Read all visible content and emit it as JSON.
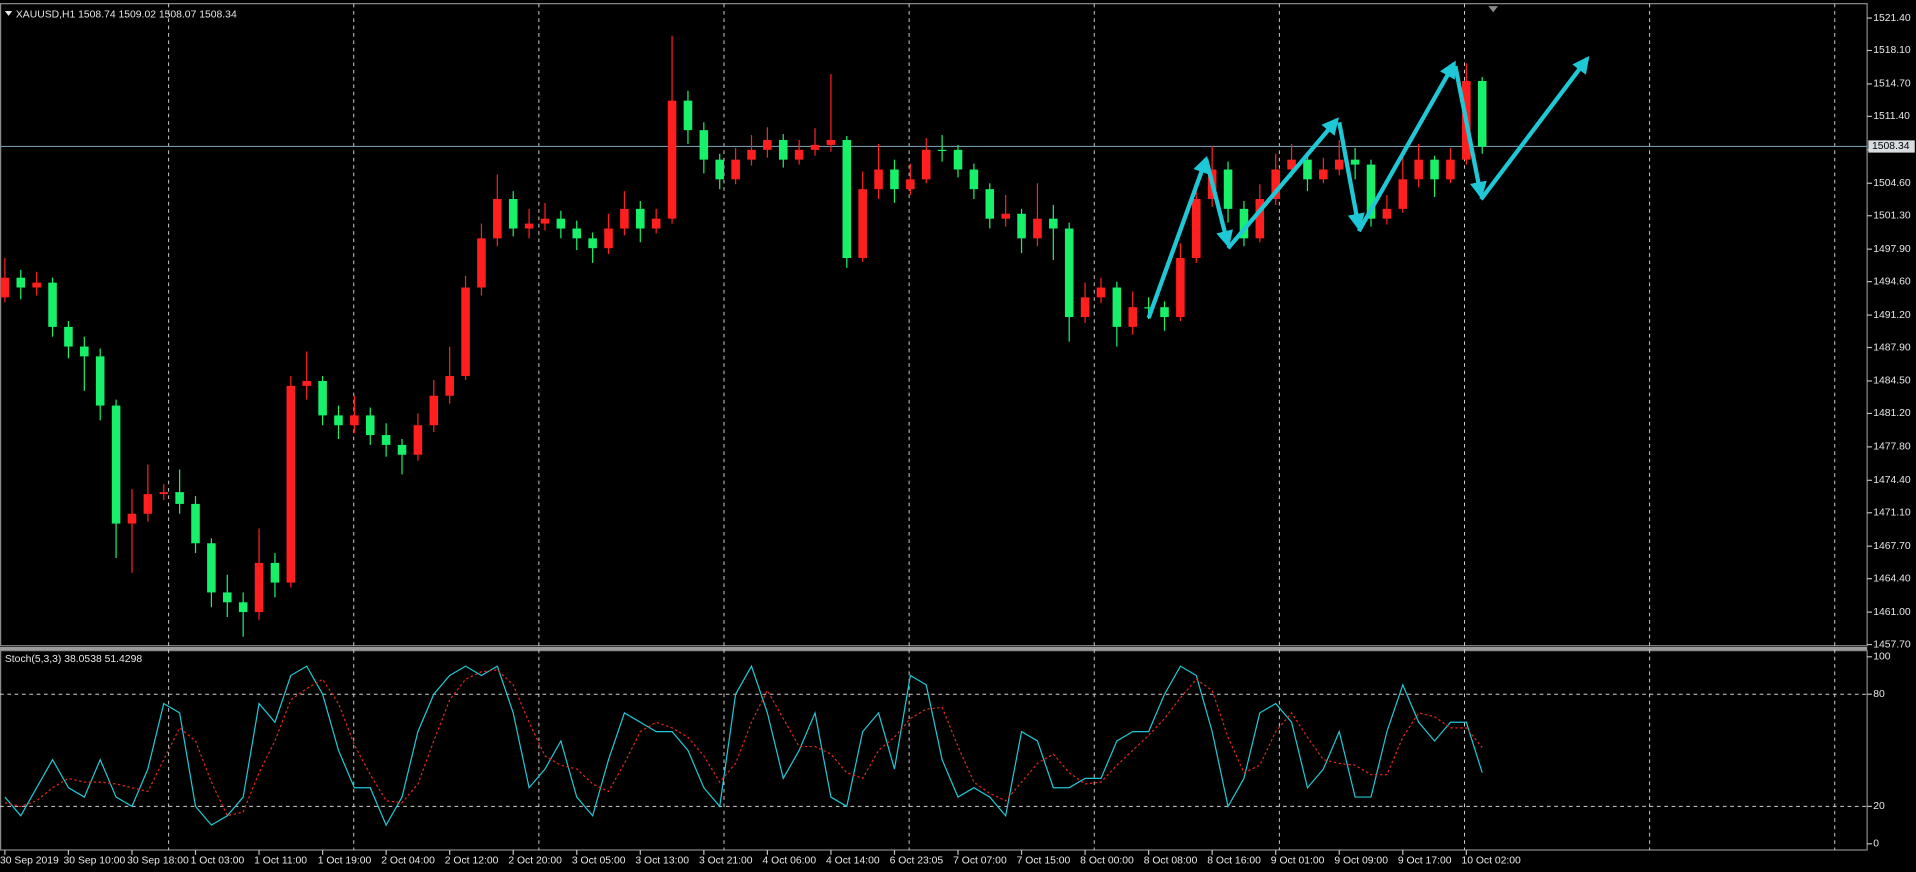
{
  "chart_data": [
    {
      "type": "candlestick",
      "title": "XAUUSD,H1  1508.74 1509.02 1508.07 1508.34",
      "up_color": "#ff1f1f",
      "down_color": "#19f06a",
      "grid": true,
      "ylim": [
        1457.58,
        1522.86
      ],
      "yticks": [
        {
          "value": 1521.4,
          "label": "1521.40"
        },
        {
          "value": 1518.1,
          "label": "1518.10"
        },
        {
          "value": 1514.7,
          "label": "1514.70"
        },
        {
          "value": 1511.4,
          "label": "1511.40"
        },
        {
          "value": 1508,
          "label": "1508.00"
        },
        {
          "value": 1504.6,
          "label": "1504.60"
        },
        {
          "value": 1501.3,
          "label": "1501.30"
        },
        {
          "value": 1497.9,
          "label": "1497.90"
        },
        {
          "value": 1494.6,
          "label": "1494.60"
        },
        {
          "value": 1491.2,
          "label": "1491.20"
        },
        {
          "value": 1487.9,
          "label": "1487.90"
        },
        {
          "value": 1484.5,
          "label": "1484.50"
        },
        {
          "value": 1481.2,
          "label": "1481.20"
        },
        {
          "value": 1477.8,
          "label": "1477.80"
        },
        {
          "value": 1474.4,
          "label": "1474.40"
        },
        {
          "value": 1471.1,
          "label": "1471.10"
        },
        {
          "value": 1467.7,
          "label": "1467.70"
        },
        {
          "value": 1464.4,
          "label": "1464.40"
        },
        {
          "value": 1461,
          "label": "1461.00"
        },
        {
          "value": 1457.7,
          "label": "1457.70"
        }
      ],
      "current_price": 1508.34,
      "categories": [
        "30 Sep 2019",
        null,
        null,
        null,
        "30 Sep 10:00",
        null,
        null,
        null,
        "30 Sep 18:00",
        null,
        null,
        null,
        "1 Oct 03:00",
        null,
        null,
        null,
        "1 Oct 11:00",
        null,
        null,
        null,
        "1 Oct 19:00",
        null,
        null,
        null,
        "2 Oct 04:00",
        null,
        null,
        null,
        "2 Oct 12:00",
        null,
        null,
        null,
        "2 Oct 20:00",
        null,
        null,
        null,
        "3 Oct 05:00",
        null,
        null,
        null,
        "3 Oct 13:00",
        null,
        null,
        null,
        "3 Oct 21:00",
        null,
        null,
        null,
        "4 Oct 06:00",
        null,
        null,
        null,
        "4 Oct 14:00",
        null,
        null,
        null,
        "6 Oct 23:05",
        null,
        null,
        null,
        "7 Oct 07:00",
        null,
        null,
        null,
        "7 Oct 15:00",
        null,
        null,
        null,
        "8 Oct 00:00",
        null,
        null,
        null,
        "8 Oct 08:00",
        null,
        null,
        null,
        "8 Oct 16:00",
        null,
        null,
        null,
        "9 Oct 01:00",
        null,
        null,
        null,
        "9 Oct 09:00",
        null,
        null,
        null,
        "9 Oct 17:00",
        null,
        null,
        null,
        "10 Oct 02:00",
        null
      ],
      "open": [
        1493,
        1495,
        1494,
        1494.5,
        1490,
        1488,
        1487,
        1482,
        1470,
        1471,
        1473,
        1473.2,
        1472,
        1468,
        1463,
        1462,
        1461,
        1466,
        1464,
        1484,
        1484.5,
        1481,
        1480,
        1481,
        1479,
        1478,
        1477,
        1480,
        1483,
        1485,
        1494,
        1499,
        1503,
        1500,
        1500.5,
        1501,
        1500,
        1499,
        1498,
        1500,
        1502,
        1500,
        1501,
        1513,
        1510,
        1507,
        1505,
        1507,
        1508,
        1509,
        1507,
        1508,
        1508.5,
        1509,
        1497,
        1504,
        1506,
        1504,
        1505,
        1508,
        1508,
        1506,
        1504,
        1501,
        1501.5,
        1499,
        1501,
        1500,
        1491,
        1493,
        1494,
        1490,
        1492,
        1492,
        1491,
        1497,
        1503,
        1506,
        1502,
        1499,
        1503,
        1506,
        1507,
        1505,
        1506,
        1507,
        1506.5,
        1501,
        1502,
        1505,
        1507,
        1505,
        1507,
        1515
      ],
      "high": [
        1497,
        1495.8,
        1495.6,
        1495,
        1490.6,
        1489,
        1487.8,
        1482.6,
        1473.5,
        1476,
        1474,
        1475.5,
        1472.8,
        1468.5,
        1464.8,
        1463,
        1469.5,
        1467,
        1485,
        1487.5,
        1485,
        1482,
        1483,
        1481.8,
        1480.2,
        1478.6,
        1481.2,
        1484.6,
        1488,
        1495.2,
        1500.5,
        1505.5,
        1503.8,
        1502,
        1502.6,
        1501.8,
        1500.8,
        1499.6,
        1501.5,
        1503.8,
        1502.8,
        1502,
        1519.6,
        1514,
        1510.8,
        1507.6,
        1508.2,
        1509.5,
        1510.3,
        1509.6,
        1509,
        1510.2,
        1515.7,
        1509.4,
        1505.8,
        1508.6,
        1507,
        1506.6,
        1509.2,
        1509.5,
        1508.5,
        1506.6,
        1504.6,
        1503.4,
        1502,
        1504.6,
        1502.4,
        1500.6,
        1494.5,
        1495,
        1494.6,
        1493.6,
        1493,
        1492.6,
        1498.5,
        1504.6,
        1508.4,
        1506.8,
        1502.8,
        1504.5,
        1507.6,
        1508.6,
        1507.6,
        1507.2,
        1509,
        1508.2,
        1507,
        1503.4,
        1507.8,
        1508.6,
        1507.4,
        1508.2,
        1516.8,
        1515.4
      ],
      "low": [
        1492.5,
        1492.8,
        1493.2,
        1489,
        1486.8,
        1483.5,
        1480.5,
        1466.5,
        1465,
        1470.2,
        1472.4,
        1471,
        1467,
        1461.5,
        1460.5,
        1458.5,
        1460.2,
        1462.5,
        1463.5,
        1482.6,
        1480,
        1478.6,
        1479.2,
        1478,
        1476.8,
        1475,
        1476.4,
        1479.3,
        1482.2,
        1484.6,
        1493.2,
        1498.2,
        1499.2,
        1499,
        1499.8,
        1499,
        1497.8,
        1496.5,
        1497.4,
        1499.3,
        1498.6,
        1499.5,
        1500.5,
        1508.6,
        1505.6,
        1504,
        1504.5,
        1506.4,
        1507.2,
        1506.2,
        1506.5,
        1507.4,
        1507.8,
        1496,
        1496.6,
        1503,
        1502.6,
        1503.4,
        1504.6,
        1506.8,
        1505.2,
        1503,
        1500,
        1500.2,
        1497.5,
        1498.2,
        1496.8,
        1488.5,
        1490.4,
        1492.4,
        1488,
        1489.2,
        1490.8,
        1489.6,
        1490.6,
        1496.5,
        1502.2,
        1500.6,
        1498.2,
        1498.6,
        1502.4,
        1505.2,
        1503.8,
        1504.6,
        1505.4,
        1505,
        1500.2,
        1500.4,
        1501.6,
        1504.2,
        1503.2,
        1504.6,
        1506.5,
        1507.6
      ],
      "close": [
        1495,
        1494,
        1494.5,
        1490,
        1488,
        1487,
        1482,
        1470,
        1471,
        1473,
        1473.2,
        1472,
        1468,
        1463,
        1462,
        1461,
        1466,
        1464,
        1484,
        1484.5,
        1481,
        1480,
        1481,
        1479,
        1478,
        1477,
        1480,
        1483,
        1485,
        1494,
        1499,
        1503,
        1500,
        1500.5,
        1501,
        1500,
        1499,
        1498,
        1500,
        1502,
        1500,
        1501,
        1513,
        1510,
        1507,
        1505,
        1507,
        1508,
        1509,
        1507,
        1508,
        1508.5,
        1509,
        1497,
        1504,
        1506,
        1504,
        1505,
        1508,
        1508,
        1506,
        1504,
        1501,
        1501.5,
        1499,
        1501,
        1500,
        1491,
        1493,
        1494,
        1490,
        1492,
        1492,
        1491,
        1497,
        1503,
        1506,
        1502,
        1499,
        1503,
        1506,
        1507,
        1505,
        1506,
        1507,
        1506.5,
        1501,
        1502,
        1505,
        1507,
        1505,
        1507,
        1515,
        1508.34
      ]
    },
    {
      "type": "line",
      "title": "Stoch(5,3,3) 38.0538 51.4298",
      "ylim": [
        -3.3,
        103.3
      ],
      "yticks": [
        0,
        20,
        80,
        100
      ],
      "series": [
        {
          "color": "#1fc8d4",
          "dashed": false,
          "values": [
            25,
            15,
            30,
            45,
            30,
            25,
            45,
            25,
            20,
            40,
            75,
            70,
            20,
            10,
            15,
            25,
            75,
            65,
            90,
            95,
            80,
            50,
            30,
            30,
            10,
            25,
            60,
            80,
            90,
            95,
            90,
            95,
            70,
            30,
            40,
            55,
            25,
            15,
            45,
            70,
            65,
            60,
            60,
            50,
            30,
            20,
            80,
            95,
            70,
            35,
            50,
            70,
            25,
            20,
            60,
            70,
            40,
            90,
            85,
            45,
            25,
            30,
            25,
            15,
            60,
            55,
            30,
            30,
            35,
            35,
            55,
            60,
            60,
            80,
            95,
            90,
            60,
            20,
            35,
            70,
            75,
            65,
            30,
            40,
            60,
            25,
            25,
            60,
            85,
            65,
            55,
            65,
            65,
            38.05
          ]
        },
        {
          "color": "#e0281e",
          "dashed": true,
          "values": [
            22,
            20,
            23,
            30,
            35,
            33,
            33,
            32,
            30,
            28,
            45,
            62,
            55,
            33,
            15,
            17,
            38,
            55,
            77,
            83,
            88,
            75,
            53,
            37,
            23,
            22,
            32,
            55,
            77,
            88,
            92,
            93,
            85,
            65,
            47,
            42,
            40,
            32,
            28,
            43,
            60,
            65,
            62,
            57,
            47,
            33,
            43,
            65,
            82,
            67,
            52,
            52,
            48,
            38,
            35,
            50,
            57,
            67,
            72,
            73,
            52,
            33,
            27,
            23,
            33,
            43,
            48,
            38,
            32,
            33,
            42,
            50,
            58,
            67,
            78,
            88,
            82,
            57,
            38,
            42,
            60,
            70,
            57,
            45,
            43,
            42,
            37,
            37,
            57,
            70,
            68,
            62,
            62,
            51.43
          ]
        }
      ]
    }
  ]
}
